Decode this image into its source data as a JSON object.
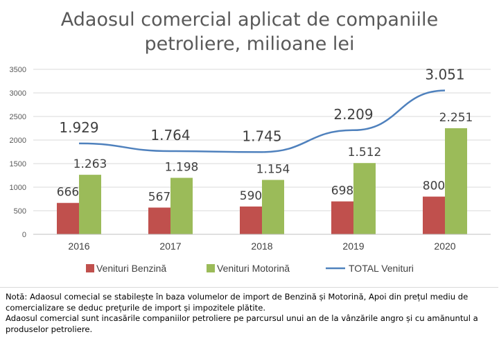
{
  "chart_data": {
    "type": "bar",
    "title_lines": [
      "Adaosul comercial aplicat de companiile",
      "petroliere, milioane lei"
    ],
    "categories": [
      "2016",
      "2017",
      "2018",
      "2019",
      "2020"
    ],
    "ylim": [
      0,
      3500
    ],
    "yticks": [
      0,
      500,
      1000,
      1500,
      2000,
      2500,
      3000,
      3500
    ],
    "grid": true,
    "series": [
      {
        "name": "Venituri Benzină",
        "kind": "bar",
        "color": "#c0504d",
        "values": [
          666,
          567,
          590,
          698,
          800
        ],
        "labels": [
          "666",
          "567",
          "590",
          "698",
          "800"
        ]
      },
      {
        "name": "Venituri Motorină",
        "kind": "bar",
        "color": "#9bbb59",
        "values": [
          1263,
          1198,
          1154,
          1512,
          2251
        ],
        "labels": [
          "1.263",
          "1.198",
          "1.154",
          "1.512",
          "2.251"
        ]
      },
      {
        "name": "TOTAL Venituri",
        "kind": "line",
        "color": "#4f81bd",
        "values": [
          1929,
          1764,
          1745,
          2209,
          3051
        ],
        "labels": [
          "1.929",
          "1.764",
          "1.745",
          "2.209",
          "3.051"
        ]
      }
    ],
    "legend_position": "bottom"
  },
  "note": {
    "line1": "Notă: Adaosul comecial se stabilește în baza volumelor de import de Benzină și Motorină, Apoi din prețul mediu de comercializare se deduc prețurile de import și impozitele plătite.",
    "line2": "Adaosul comercial sunt incasările companiilor petroliere pe parcursul unui an de la vânzările angro și cu amănuntul a produselor petroliere."
  }
}
